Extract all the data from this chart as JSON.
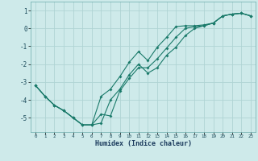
{
  "title": "",
  "xlabel": "Humidex (Indice chaleur)",
  "ylabel": "",
  "bg_color": "#ceeaea",
  "grid_color": "#afd4d4",
  "line_color": "#1a7a6a",
  "xlim": [
    -0.5,
    23.5
  ],
  "ylim": [
    -5.8,
    1.5
  ],
  "xticks": [
    0,
    1,
    2,
    3,
    4,
    5,
    6,
    7,
    8,
    9,
    10,
    11,
    12,
    13,
    14,
    15,
    16,
    17,
    18,
    19,
    20,
    21,
    22,
    23
  ],
  "yticks": [
    -5,
    -4,
    -3,
    -2,
    -1,
    0,
    1
  ],
  "line1_x": [
    0,
    1,
    2,
    3,
    4,
    5,
    6,
    7,
    8,
    9,
    10,
    11,
    12,
    13,
    14,
    15,
    16,
    17,
    18,
    19,
    20,
    21,
    22,
    23
  ],
  "line1_y": [
    -3.2,
    -3.8,
    -4.3,
    -4.6,
    -5.0,
    -5.4,
    -5.4,
    -3.8,
    -3.4,
    -2.7,
    -1.9,
    -1.3,
    -1.8,
    -1.05,
    -0.5,
    0.1,
    0.15,
    0.15,
    0.2,
    0.3,
    0.7,
    0.8,
    0.85,
    0.7
  ],
  "line2_x": [
    0,
    1,
    2,
    3,
    4,
    5,
    6,
    7,
    8,
    9,
    10,
    11,
    12,
    13,
    14,
    15,
    16,
    17,
    18,
    19,
    20,
    21,
    22,
    23
  ],
  "line2_y": [
    -3.2,
    -3.8,
    -4.3,
    -4.6,
    -5.0,
    -5.4,
    -5.4,
    -4.8,
    -4.9,
    -3.5,
    -2.8,
    -2.2,
    -2.2,
    -1.7,
    -1.1,
    -0.5,
    0.0,
    0.1,
    0.15,
    0.3,
    0.7,
    0.8,
    0.85,
    0.7
  ],
  "line3_x": [
    0,
    1,
    2,
    3,
    4,
    5,
    6,
    7,
    8,
    9,
    10,
    11,
    12,
    13,
    14,
    15,
    16,
    17,
    18,
    19,
    20,
    21,
    22,
    23
  ],
  "line3_y": [
    -3.2,
    -3.8,
    -4.3,
    -4.6,
    -5.0,
    -5.4,
    -5.4,
    -5.3,
    -4.0,
    -3.4,
    -2.6,
    -2.0,
    -2.5,
    -2.2,
    -1.5,
    -1.05,
    -0.4,
    0.0,
    0.15,
    0.3,
    0.7,
    0.8,
    0.85,
    0.7
  ]
}
